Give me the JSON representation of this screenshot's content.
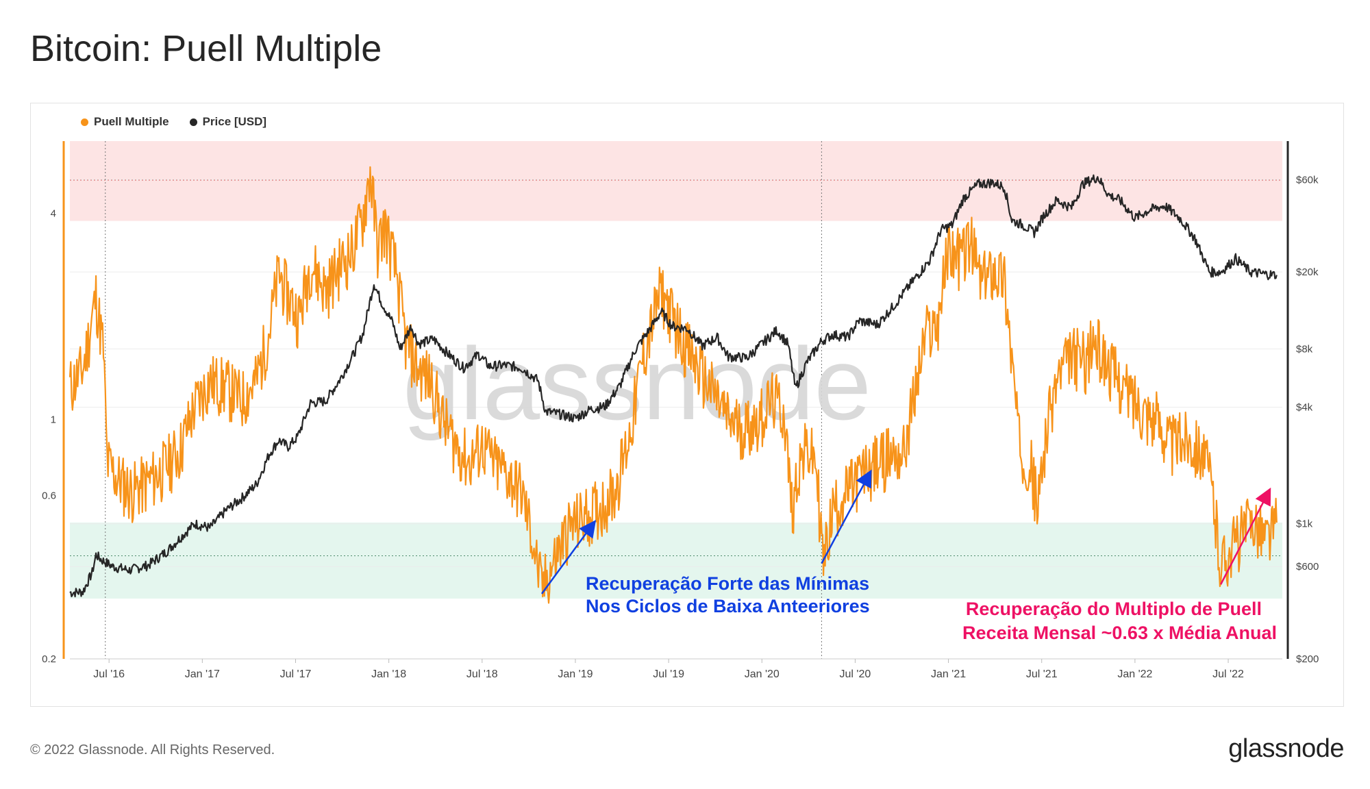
{
  "page_title": "Bitcoin: Puell Multiple",
  "footer": {
    "copyright": "© 2022 Glassnode. All Rights Reserved.",
    "logo": "glassnode"
  },
  "colors": {
    "puell": "#f7931a",
    "price": "#262626",
    "red_band": "#fde4e4",
    "green_band": "#e4f6ee",
    "blue_annotation": "#1040e0",
    "pink_annotation": "#ee1164"
  },
  "chart_data": {
    "type": "line",
    "title": "Bitcoin: Puell Multiple",
    "watermark": "glassnode",
    "legend": [
      "Puell Multiple",
      "Price [USD]"
    ],
    "x_range": [
      "2016-05-01",
      "2022-11-01"
    ],
    "x_ticks": [
      {
        "label": "Jul '16",
        "t": 2016.54
      },
      {
        "label": "Jan '17",
        "t": 2017.04
      },
      {
        "label": "Jul '17",
        "t": 2017.54
      },
      {
        "label": "Jan '18",
        "t": 2018.04
      },
      {
        "label": "Jul '18",
        "t": 2018.54
      },
      {
        "label": "Jan '19",
        "t": 2019.04
      },
      {
        "label": "Jul '19",
        "t": 2019.54
      },
      {
        "label": "Jan '20",
        "t": 2020.04
      },
      {
        "label": "Jul '20",
        "t": 2020.54
      },
      {
        "label": "Jan '21",
        "t": 2021.04
      },
      {
        "label": "Jul '21",
        "t": 2021.54
      },
      {
        "label": "Jan '22",
        "t": 2022.04
      },
      {
        "label": "Jul '22",
        "t": 2022.54
      }
    ],
    "left_axis": {
      "name": "Puell Multiple",
      "scale": "log",
      "range": [
        0.2,
        6.5
      ],
      "ticks": [
        {
          "label": "0.2",
          "v": 0.2
        },
        {
          "label": "0.6",
          "v": 0.6
        },
        {
          "label": "1",
          "v": 1
        },
        {
          "label": "4",
          "v": 4
        }
      ]
    },
    "right_axis": {
      "name": "Price [USD]",
      "scale": "log",
      "range": [
        200,
        95000
      ],
      "ticks": [
        {
          "label": "$200",
          "v": 200
        },
        {
          "label": "$600",
          "v": 600
        },
        {
          "label": "$1k",
          "v": 1000
        },
        {
          "label": "$4k",
          "v": 4000
        },
        {
          "label": "$8k",
          "v": 8000
        },
        {
          "label": "$20k",
          "v": 20000
        },
        {
          "label": "$60k",
          "v": 60000
        }
      ]
    },
    "bands": [
      {
        "name": "red",
        "from": 3.8,
        "to": 6.5
      },
      {
        "name": "green",
        "from": 0.3,
        "to": 0.5
      }
    ],
    "reference_lines": [
      {
        "axis": "left",
        "v": 5.0
      },
      {
        "axis": "left",
        "v": 0.4
      }
    ],
    "halving_lines": [
      2016.52,
      2020.36
    ],
    "series": [
      {
        "name": "Puell Multiple",
        "points": [
          [
            2016.33,
            1.25
          ],
          [
            2016.4,
            1.4
          ],
          [
            2016.47,
            2.3
          ],
          [
            2016.51,
            1.6
          ],
          [
            2016.53,
            0.75
          ],
          [
            2016.58,
            0.68
          ],
          [
            2016.66,
            0.62
          ],
          [
            2016.75,
            0.66
          ],
          [
            2016.83,
            0.72
          ],
          [
            2016.92,
            0.82
          ],
          [
            2017.0,
            1.1
          ],
          [
            2017.08,
            1.3
          ],
          [
            2017.17,
            1.25
          ],
          [
            2017.25,
            1.15
          ],
          [
            2017.33,
            1.3
          ],
          [
            2017.4,
            1.85
          ],
          [
            2017.45,
            2.7
          ],
          [
            2017.5,
            2.3
          ],
          [
            2017.56,
            2.0
          ],
          [
            2017.62,
            2.9
          ],
          [
            2017.7,
            2.4
          ],
          [
            2017.78,
            2.85
          ],
          [
            2017.84,
            3.1
          ],
          [
            2017.9,
            3.9
          ],
          [
            2017.94,
            5.3
          ],
          [
            2017.98,
            3.2
          ],
          [
            2018.02,
            3.7
          ],
          [
            2018.08,
            2.7
          ],
          [
            2018.13,
            1.7
          ],
          [
            2018.2,
            1.4
          ],
          [
            2018.27,
            1.3
          ],
          [
            2018.33,
            1.0
          ],
          [
            2018.4,
            0.85
          ],
          [
            2018.47,
            0.75
          ],
          [
            2018.54,
            0.85
          ],
          [
            2018.6,
            0.75
          ],
          [
            2018.67,
            0.7
          ],
          [
            2018.75,
            0.62
          ],
          [
            2018.8,
            0.48
          ],
          [
            2018.86,
            0.32
          ],
          [
            2018.92,
            0.38
          ],
          [
            2019.0,
            0.48
          ],
          [
            2019.08,
            0.52
          ],
          [
            2019.16,
            0.55
          ],
          [
            2019.25,
            0.62
          ],
          [
            2019.33,
            0.9
          ],
          [
            2019.4,
            1.5
          ],
          [
            2019.46,
            2.0
          ],
          [
            2019.5,
            2.4
          ],
          [
            2019.56,
            2.0
          ],
          [
            2019.62,
            1.7
          ],
          [
            2019.7,
            1.4
          ],
          [
            2019.78,
            1.2
          ],
          [
            2019.86,
            1.0
          ],
          [
            2019.94,
            0.95
          ],
          [
            2020.02,
            1.0
          ],
          [
            2020.1,
            1.15
          ],
          [
            2020.16,
            1.05
          ],
          [
            2020.2,
            0.55
          ],
          [
            2020.24,
            0.75
          ],
          [
            2020.28,
            0.82
          ],
          [
            2020.33,
            0.75
          ],
          [
            2020.37,
            0.38
          ],
          [
            2020.42,
            0.55
          ],
          [
            2020.5,
            0.62
          ],
          [
            2020.58,
            0.7
          ],
          [
            2020.66,
            0.75
          ],
          [
            2020.74,
            0.8
          ],
          [
            2020.8,
            0.8
          ],
          [
            2020.86,
            1.2
          ],
          [
            2020.92,
            1.8
          ],
          [
            2020.98,
            1.9
          ],
          [
            2021.04,
            3.2
          ],
          [
            2021.1,
            3.0
          ],
          [
            2021.16,
            3.3
          ],
          [
            2021.22,
            2.5
          ],
          [
            2021.28,
            2.8
          ],
          [
            2021.34,
            2.6
          ],
          [
            2021.38,
            1.5
          ],
          [
            2021.42,
            0.85
          ],
          [
            2021.48,
            0.75
          ],
          [
            2021.52,
            0.55
          ],
          [
            2021.56,
            0.9
          ],
          [
            2021.62,
            1.3
          ],
          [
            2021.7,
            1.55
          ],
          [
            2021.78,
            1.5
          ],
          [
            2021.82,
            1.7
          ],
          [
            2021.88,
            1.5
          ],
          [
            2022.0,
            1.2
          ],
          [
            2022.08,
            1.1
          ],
          [
            2022.16,
            1.0
          ],
          [
            2022.24,
            0.85
          ],
          [
            2022.32,
            0.9
          ],
          [
            2022.4,
            0.82
          ],
          [
            2022.45,
            0.65
          ],
          [
            2022.5,
            0.38
          ],
          [
            2022.56,
            0.43
          ],
          [
            2022.62,
            0.47
          ],
          [
            2022.68,
            0.52
          ],
          [
            2022.74,
            0.45
          ],
          [
            2022.8,
            0.5
          ]
        ]
      },
      {
        "name": "Price [USD]",
        "points": [
          [
            2016.33,
            440
          ],
          [
            2016.4,
            445
          ],
          [
            2016.45,
            560
          ],
          [
            2016.47,
            690
          ],
          [
            2016.5,
            650
          ],
          [
            2016.56,
            600
          ],
          [
            2016.65,
            575
          ],
          [
            2016.75,
            610
          ],
          [
            2016.85,
            720
          ],
          [
            2016.95,
            900
          ],
          [
            2017.0,
            1000
          ],
          [
            2017.08,
            950
          ],
          [
            2017.17,
            1180
          ],
          [
            2017.25,
            1350
          ],
          [
            2017.33,
            1600
          ],
          [
            2017.4,
            2300
          ],
          [
            2017.45,
            2700
          ],
          [
            2017.5,
            2500
          ],
          [
            2017.55,
            2800
          ],
          [
            2017.62,
            4200
          ],
          [
            2017.7,
            4300
          ],
          [
            2017.78,
            5600
          ],
          [
            2017.85,
            7500
          ],
          [
            2017.9,
            9500
          ],
          [
            2017.96,
            17500
          ],
          [
            2018.0,
            14000
          ],
          [
            2018.06,
            11000
          ],
          [
            2018.1,
            8000
          ],
          [
            2018.16,
            10500
          ],
          [
            2018.2,
            8500
          ],
          [
            2018.28,
            9000
          ],
          [
            2018.36,
            7500
          ],
          [
            2018.44,
            6400
          ],
          [
            2018.52,
            7500
          ],
          [
            2018.58,
            6500
          ],
          [
            2018.66,
            6600
          ],
          [
            2018.75,
            6400
          ],
          [
            2018.84,
            5500
          ],
          [
            2018.88,
            3800
          ],
          [
            2018.95,
            3700
          ],
          [
            2019.04,
            3500
          ],
          [
            2019.12,
            3900
          ],
          [
            2019.2,
            4050
          ],
          [
            2019.28,
            5200
          ],
          [
            2019.36,
            7900
          ],
          [
            2019.45,
            10500
          ],
          [
            2019.5,
            12500
          ],
          [
            2019.56,
            10500
          ],
          [
            2019.64,
            10200
          ],
          [
            2019.72,
            8300
          ],
          [
            2019.8,
            9200
          ],
          [
            2019.86,
            7300
          ],
          [
            2019.96,
            7200
          ],
          [
            2020.04,
            8500
          ],
          [
            2020.12,
            10000
          ],
          [
            2020.18,
            8500
          ],
          [
            2020.22,
            5000
          ],
          [
            2020.28,
            6800
          ],
          [
            2020.36,
            8800
          ],
          [
            2020.42,
            9500
          ],
          [
            2020.5,
            9200
          ],
          [
            2020.56,
            11200
          ],
          [
            2020.66,
            10700
          ],
          [
            2020.75,
            13500
          ],
          [
            2020.85,
            18000
          ],
          [
            2020.94,
            23000
          ],
          [
            2021.0,
            33000
          ],
          [
            2021.06,
            35000
          ],
          [
            2021.12,
            48000
          ],
          [
            2021.2,
            57000
          ],
          [
            2021.28,
            58000
          ],
          [
            2021.34,
            55000
          ],
          [
            2021.38,
            37000
          ],
          [
            2021.44,
            35000
          ],
          [
            2021.5,
            32000
          ],
          [
            2021.55,
            39000
          ],
          [
            2021.62,
            47000
          ],
          [
            2021.7,
            43000
          ],
          [
            2021.76,
            57000
          ],
          [
            2021.84,
            62000
          ],
          [
            2021.9,
            50000
          ],
          [
            2021.96,
            47000
          ],
          [
            2022.04,
            38000
          ],
          [
            2022.12,
            42000
          ],
          [
            2022.2,
            44000
          ],
          [
            2022.28,
            38000
          ],
          [
            2022.36,
            30000
          ],
          [
            2022.44,
            20000
          ],
          [
            2022.5,
            20000
          ],
          [
            2022.58,
            23500
          ],
          [
            2022.66,
            20000
          ],
          [
            2022.74,
            19500
          ],
          [
            2022.8,
            19300
          ]
        ]
      }
    ],
    "annotations": [
      {
        "text": [
          "Recuperação Forte das Mínimas",
          "Nos Ciclos de Baixa Anteeriores"
        ],
        "color": "blue",
        "arrows": [
          [
            [
              2018.86,
              0.31
            ],
            [
              2019.14,
              0.5
            ]
          ],
          [
            [
              2020.36,
              0.38
            ],
            [
              2020.62,
              0.7
            ]
          ]
        ]
      },
      {
        "text": [
          "Recuperação do Multiplo de Puell",
          "Receita Mensal ~0.63 x Média Anual"
        ],
        "color": "pink",
        "arrows": [
          [
            [
              2022.5,
              0.33
            ],
            [
              2022.76,
              0.62
            ]
          ]
        ]
      }
    ]
  }
}
